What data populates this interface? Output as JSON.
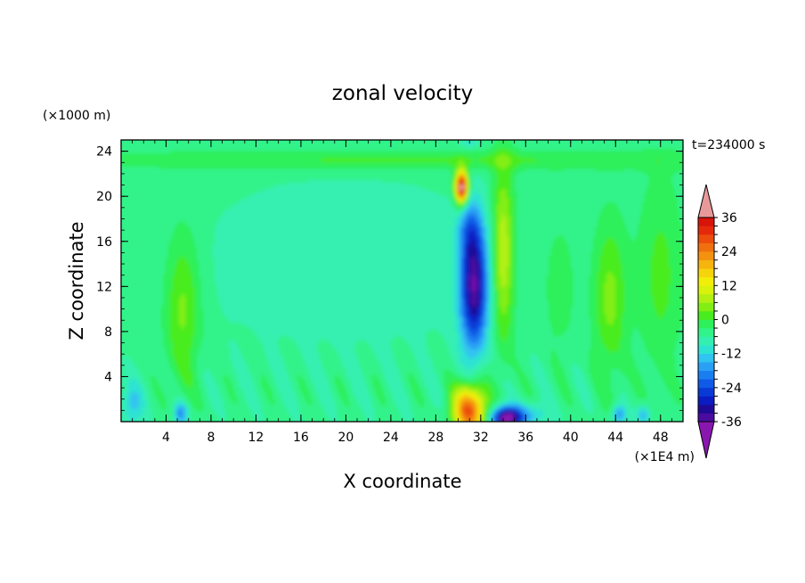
{
  "chart_data": {
    "type": "heatmap",
    "title": "zonal velocity",
    "xlabel": "X coordinate",
    "ylabel": "Z coordinate",
    "x_unit": "(×1E4 m)",
    "y_unit": "(×1000 m)",
    "time_label": "t=234000 s",
    "xlim": [
      0,
      50
    ],
    "ylim": [
      0,
      25
    ],
    "x_ticks": [
      "4",
      "8",
      "12",
      "16",
      "20",
      "24",
      "28",
      "32",
      "36",
      "40",
      "44",
      "48"
    ],
    "y_ticks": [
      "4",
      "8",
      "12",
      "16",
      "20",
      "24"
    ],
    "colorbar": {
      "levels": [
        -39,
        -36,
        -33,
        -30,
        -27,
        -24,
        -21,
        -18,
        -15,
        -12,
        -9,
        -6,
        -3,
        0,
        3,
        6,
        9,
        12,
        15,
        18,
        21,
        24,
        27,
        30,
        33,
        36,
        39
      ],
      "tick_labels": [
        "36",
        "24",
        "12",
        "0",
        "-12",
        "-24",
        "-36"
      ],
      "colors": [
        "#8a16b0",
        "#4a0ca0",
        "#1e0a96",
        "#0a1cc2",
        "#0a3ad6",
        "#0f5ae6",
        "#1a7df0",
        "#2aa0f4",
        "#30c4f0",
        "#2de3d2",
        "#34f0b0",
        "#30f38a",
        "#2ef05a",
        "#49ec1e",
        "#83ee14",
        "#b2f014",
        "#d8f20c",
        "#f2ee0a",
        "#f6d40c",
        "#f6b40e",
        "#f49210",
        "#f0700e",
        "#ec4c0c",
        "#e42a0a",
        "#d8140a",
        "#e89a9a"
      ]
    },
    "field_features": [
      {
        "feature": "negative jet core",
        "x": [
          29.5,
          33
        ],
        "z": [
          7,
          19
        ],
        "min_value": -27
      },
      {
        "feature": "positive tongue",
        "x": [
          29.5,
          31
        ],
        "z": [
          18,
          23
        ],
        "max_value": 33
      },
      {
        "feature": "positive band",
        "x": [
          33,
          35
        ],
        "z": [
          8,
          23
        ],
        "max_value": 12
      },
      {
        "feature": "surface positive",
        "x": [
          29,
          33
        ],
        "z": [
          0,
          4
        ],
        "max_value": 33
      },
      {
        "feature": "surface negative",
        "x": [
          33,
          37
        ],
        "z": [
          0,
          2
        ],
        "min_value": -30
      }
    ]
  }
}
